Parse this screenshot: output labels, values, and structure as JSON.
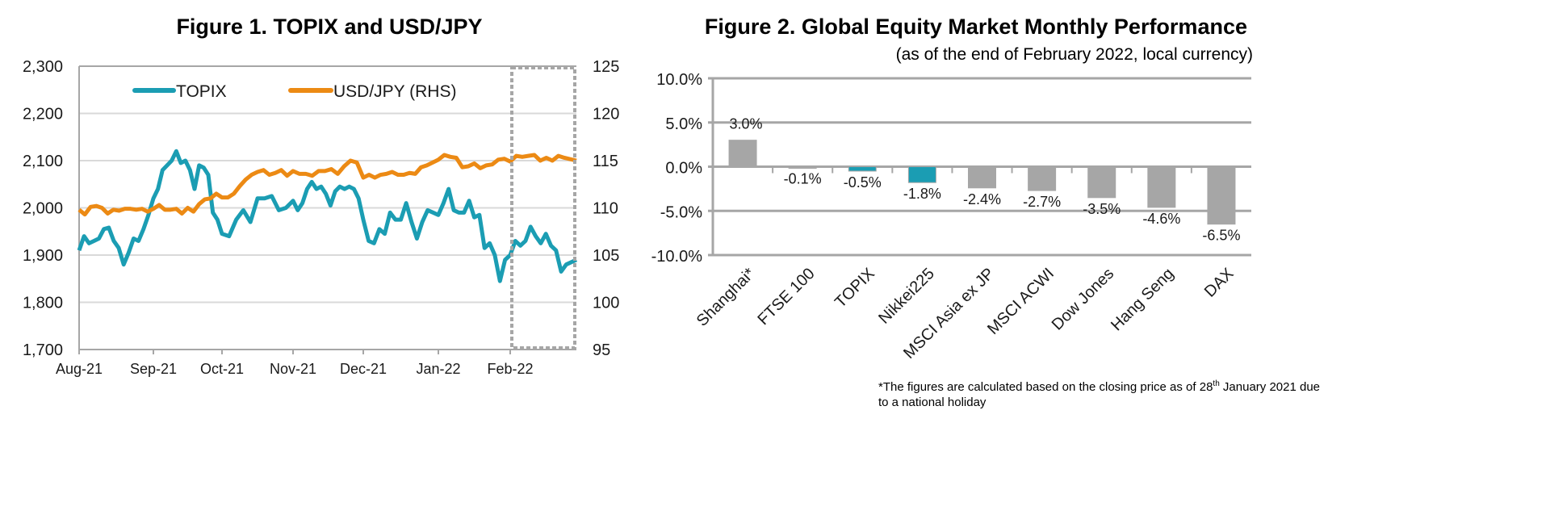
{
  "chart_data": [
    {
      "type": "line",
      "title": "Figure 1. TOPIX and USD/JPY",
      "x_ticks": [
        "Aug-21",
        "Sep-21",
        "Oct-21",
        "Nov-21",
        "Dec-21",
        "Jan-22",
        "Feb-22"
      ],
      "y_left": {
        "ticks": [
          "1,700",
          "1,800",
          "1,900",
          "2,000",
          "2,100",
          "2,200",
          "2,300"
        ],
        "range": [
          1700,
          2300
        ]
      },
      "y_right": {
        "ticks": [
          "95",
          "100",
          "105",
          "110",
          "115",
          "120",
          "125"
        ],
        "range": [
          95,
          125
        ]
      },
      "grid": true,
      "legend_position": "top",
      "highlight": "dashed box around Feb-22",
      "series": [
        {
          "name": "TOPIX",
          "axis": "left",
          "color": "#1b9db3",
          "months": [
            {
              "month": "Aug-21",
              "values": [
                1910,
                1940,
                1925,
                1930,
                1935,
                1955,
                1958,
                1930,
                1915,
                1880,
                1905,
                1935,
                1930,
                1955,
                1985
              ]
            },
            {
              "month": "Sep-21",
              "values": [
                2020,
                2040,
                2080,
                2090,
                2100,
                2120,
                2095,
                2100,
                2080,
                2040,
                2090,
                2085,
                2070,
                1990,
                1975
              ]
            },
            {
              "month": "Oct-21",
              "values": [
                1945,
                1940,
                1975,
                1995,
                1970,
                2020,
                2020,
                2025,
                1995,
                2000
              ]
            },
            {
              "month": "Nov-21",
              "values": [
                2015,
                1995,
                2010,
                2040,
                2055,
                2040,
                2045,
                2030,
                2005,
                2035,
                2045,
                2040,
                2045,
                2040,
                2020
              ]
            },
            {
              "month": "Dec-21",
              "values": [
                1975,
                1930,
                1925,
                1955,
                1945,
                1990,
                1975,
                1975,
                2010,
                1970,
                1935,
                1970,
                1995,
                1990
              ]
            },
            {
              "month": "Jan-22",
              "values": [
                1985,
                2010,
                2040,
                1995,
                1990,
                1990,
                2015,
                1980,
                1985,
                1915,
                1925,
                1900,
                1845,
                1890
              ]
            },
            {
              "month": "Feb-22",
              "values": [
                1900,
                1930,
                1920,
                1930,
                1960,
                1940,
                1925,
                1945,
                1920,
                1910,
                1865,
                1880,
                1890
              ]
            }
          ]
        },
        {
          "name": "USD/JPY (RHS)",
          "axis": "right",
          "color": "#ec8a14",
          "months": [
            {
              "month": "Aug-21",
              "values": [
                109.8,
                109.3,
                110.1,
                110.2,
                110.0,
                109.4,
                109.8,
                109.7,
                109.9,
                109.9,
                109.8,
                109.9,
                109.6
              ]
            },
            {
              "month": "Sep-21",
              "values": [
                109.9,
                110.3,
                109.8,
                109.8,
                109.9,
                109.4,
                110.0,
                109.6,
                110.4,
                110.9,
                111.0,
                111.5
              ]
            },
            {
              "month": "Oct-21",
              "values": [
                111.1,
                111.1,
                111.5,
                112.3,
                113.0,
                113.5,
                113.8,
                114.0,
                113.5,
                113.7,
                114.0,
                113.4
              ]
            },
            {
              "month": "Nov-21",
              "values": [
                113.9,
                113.6,
                113.6,
                113.4,
                113.9,
                113.9,
                114.1,
                113.6,
                114.4,
                115.0,
                114.8
              ]
            },
            {
              "month": "Dec-21",
              "values": [
                113.2,
                113.5,
                113.2,
                113.5,
                113.6,
                113.8,
                113.5,
                113.5,
                113.7,
                113.6,
                114.3,
                114.5,
                114.8
              ]
            },
            {
              "month": "Jan-22",
              "values": [
                115.1,
                115.6,
                115.4,
                115.3,
                114.3,
                114.4,
                114.7,
                114.2,
                114.5,
                114.6,
                115.1,
                115.2
              ]
            },
            {
              "month": "Feb-22",
              "values": [
                114.9,
                115.5,
                115.4,
                115.5,
                115.6,
                115.0,
                115.3,
                115.0,
                115.5,
                115.3,
                115.0
              ]
            }
          ]
        }
      ]
    },
    {
      "type": "bar",
      "title": "Figure 2. Global Equity Market Monthly Performance",
      "subtitle": "(as of the end of February 2022, local currency)",
      "categories": [
        "Shanghai*",
        "FTSE 100",
        "TOPIX",
        "Nikkei225",
        "MSCI Asia ex JP",
        "MSCI ACWI",
        "Dow Jones",
        "Hang Seng",
        "DAX"
      ],
      "values": [
        3.0,
        -0.1,
        -0.5,
        -1.8,
        -2.4,
        -2.7,
        -3.5,
        -4.6,
        -6.5
      ],
      "data_labels": [
        "3.0%",
        "-0.1%",
        "-0.5%",
        "-1.8%",
        "-2.4%",
        "-2.7%",
        "-3.5%",
        "-4.6%",
        "-6.5%"
      ],
      "bar_colors": [
        "#a6a6a6",
        "#a6a6a6",
        "#1b9db3",
        "#1b9db3",
        "#a6a6a6",
        "#a6a6a6",
        "#a6a6a6",
        "#a6a6a6",
        "#a6a6a6"
      ],
      "y_ticks": [
        "-10.0%",
        "-5.0%",
        "0.0%",
        "5.0%",
        "10.0%"
      ],
      "ylim": [
        -10,
        10
      ],
      "grid": true
    }
  ],
  "footnote": {
    "line1_pre": "*The figures are calculated based on the closing price as of 28",
    "line1_sup": "th",
    "line1_post": " January 2021 due",
    "line2": "to a national holiday"
  }
}
